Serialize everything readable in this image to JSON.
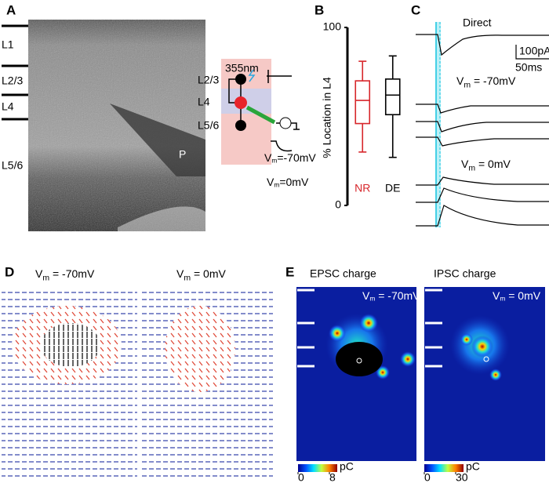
{
  "panel_labels": [
    "A",
    "B",
    "C",
    "D",
    "E"
  ],
  "panel_a": {
    "layers": [
      "L1",
      "L2/3",
      "L4",
      "L5/6"
    ],
    "pipette": "P",
    "schematic": {
      "wavelength": "355nm",
      "layers": [
        "L2/3",
        "L4",
        "L5/6"
      ],
      "vm_neg": {
        "symbol": "V",
        "subscript": "m",
        "rest": "=-70mV"
      },
      "vm_zero": {
        "symbol": "V",
        "subscript": "m",
        "rest": "=0mV"
      }
    }
  },
  "chart_data": {
    "type": "box",
    "ylabel": "% Location in L4",
    "ylim": [
      0,
      100
    ],
    "yticks": [
      0,
      100
    ],
    "categories": [
      "NR",
      "DE"
    ],
    "boxes": [
      {
        "color": "#d7262b",
        "whisker_low": 30,
        "q1": 46,
        "median": 59,
        "q3": 70,
        "whisker_high": 81
      },
      {
        "color": "#000000",
        "whisker_low": 27,
        "q1": 51,
        "median": 62,
        "q3": 71,
        "whisker_high": 84
      }
    ]
  },
  "panel_c": {
    "direct": "Direct",
    "scale_current": "100pA",
    "scale_time": "50ms",
    "vm_neg": {
      "symbol": "V",
      "subscript": "m",
      "rest": " = -70mV"
    },
    "vm_zero": {
      "symbol": "V",
      "subscript": "m",
      "rest": " = 0mV"
    }
  },
  "panel_d": {
    "vm_neg": {
      "symbol": "V",
      "subscript": "m",
      "rest": " = -70mV"
    },
    "vm_zero": {
      "symbol": "V",
      "subscript": "m",
      "rest": " = 0mV"
    }
  },
  "panel_e": {
    "maps": [
      {
        "title": "EPSC charge",
        "vm": {
          "symbol": "V",
          "subscript": "m",
          "rest": " = -70mV"
        },
        "colorbar": {
          "unit": "pC",
          "ticks": [
            0,
            8
          ]
        }
      },
      {
        "title": "IPSC charge",
        "vm": {
          "symbol": "V",
          "subscript": "m",
          "rest": " = 0mV"
        },
        "colorbar": {
          "unit": "pC",
          "ticks": [
            0,
            30
          ]
        }
      }
    ]
  }
}
